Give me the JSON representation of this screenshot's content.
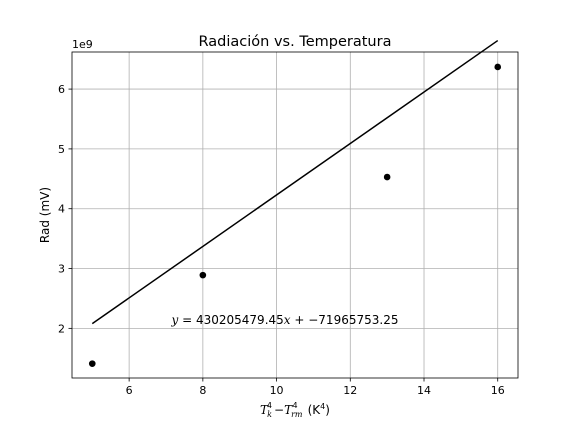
{
  "chart_data": {
    "type": "scatter",
    "title": "Radiación vs. Temperatura",
    "xlabel": "T_k^4 − T_rm^4 (K^4)",
    "xlabel_parts": {
      "T": "T",
      "k_sub": "k",
      "four1": "4",
      "minus": "−",
      "T2": "T",
      "rm_sub": "rm",
      "four2": "4",
      "unit_open": "(K",
      "unit_exp": "4",
      "unit_close": ")"
    },
    "ylabel": "Rad (mV)",
    "y_offset_text": "1e9",
    "y_scale": 1000000000,
    "xlim": [
      4.45,
      16.55
    ],
    "ylim": [
      1.17,
      6.62
    ],
    "xticks": [
      6,
      8,
      10,
      12,
      14,
      16
    ],
    "xtick_labels": [
      "6",
      "8",
      "10",
      "12",
      "14",
      "16"
    ],
    "yticks": [
      2,
      3,
      4,
      5,
      6
    ],
    "ytick_labels": [
      "2",
      "3",
      "4",
      "5",
      "6"
    ],
    "grid": true,
    "points": [
      {
        "x": 5,
        "y": 1.41
      },
      {
        "x": 8,
        "y": 2.89
      },
      {
        "x": 13,
        "y": 4.53
      },
      {
        "x": 16,
        "y": 6.37
      }
    ],
    "fit_line": {
      "slope": 430205479.45,
      "intercept": -71965753.25,
      "x_range": [
        5,
        16
      ]
    },
    "annotation": {
      "text": "y = 430205479.45x + −71965753.25",
      "prefix": "y",
      "eq": " = 430205479.45",
      "var": "x",
      "rest": " + −71965753.25",
      "x": 7.15,
      "y": 2.07
    },
    "colors": {
      "points": "#000000",
      "line": "#000000",
      "grid": "#b0b0b0"
    }
  }
}
